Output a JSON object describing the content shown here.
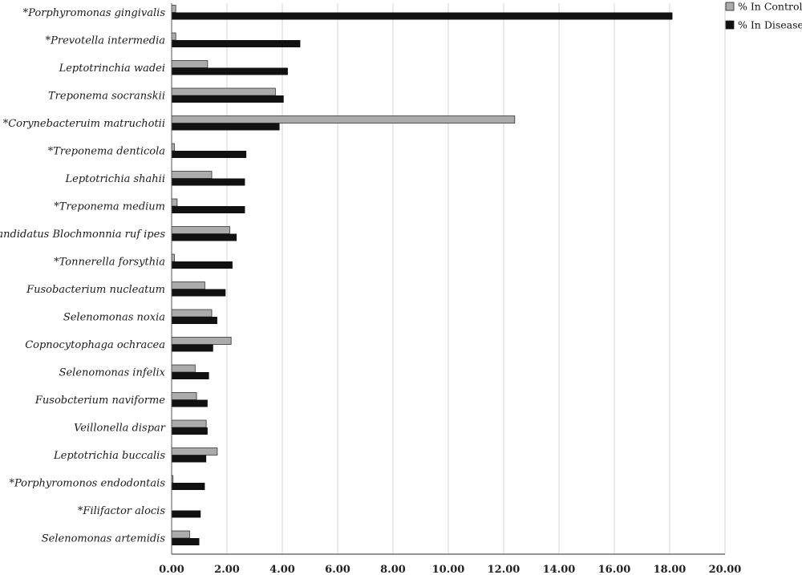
{
  "chart_data": {
    "type": "bar",
    "orientation": "horizontal",
    "categories": [
      "*Porphyromonas gingivalis",
      "*Prevotella intermedia",
      "Leptotrinchia wadei",
      "Treponema socranskii",
      "*Corynebacteruim matruchotii",
      "*Treponema denticola",
      "Leptotrichia shahii",
      "*Treponema medium",
      "Candidatus Blochmonnia ruf ipes",
      "*Tonnerella forsythia",
      "Fusobacterium nucleatum",
      "Selenomonas noxia",
      "Copnocytophaga ochracea",
      "Selenomonas infelix",
      "Fusobcterium naviforme",
      "Veillonella dispar",
      "Leptotrichia buccalis",
      "*Porphyromonos endodontais",
      "*Filifactor alocis",
      "Selenomonas artemidis"
    ],
    "series": [
      {
        "name": "% In Control",
        "color": "#a9aca9",
        "values": [
          0.15,
          0.15,
          1.3,
          3.75,
          12.4,
          0.1,
          1.45,
          0.2,
          2.1,
          0.1,
          1.2,
          1.45,
          2.15,
          0.85,
          0.9,
          1.25,
          1.65,
          0.05,
          0.0,
          0.65
        ]
      },
      {
        "name": "% In Disease",
        "color": "#111111",
        "values": [
          18.1,
          4.65,
          4.2,
          4.05,
          3.9,
          2.7,
          2.65,
          2.65,
          2.35,
          2.2,
          1.95,
          1.65,
          1.5,
          1.35,
          1.3,
          1.3,
          1.25,
          1.2,
          1.05,
          1.0
        ]
      }
    ],
    "xticks": [
      "0.00",
      "2.00",
      "4.00",
      "6.00",
      "8.00",
      "10.00",
      "12.00",
      "14.00",
      "16.00",
      "18.00",
      "20.00"
    ],
    "xlim": [
      0,
      20
    ],
    "grid": true,
    "legend_position": "top-right",
    "title": "",
    "xlabel": "",
    "ylabel": ""
  }
}
